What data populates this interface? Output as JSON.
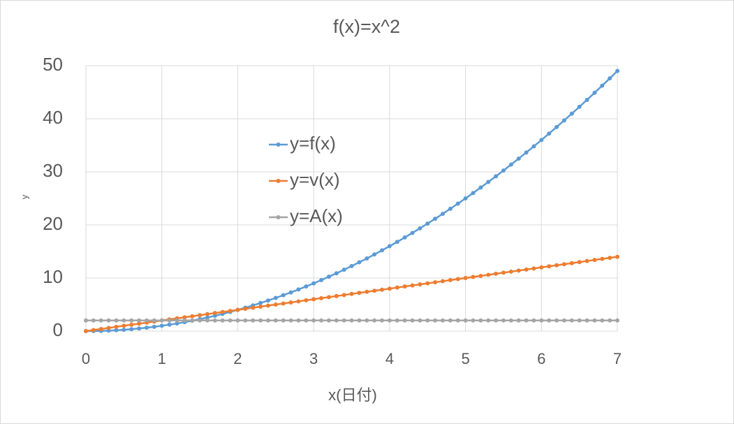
{
  "chart_data": {
    "type": "line",
    "title": "f(x)=x^2",
    "x_label": "x(日付)",
    "y_label": "y",
    "x": [
      0,
      0.1,
      0.2,
      0.3,
      0.4,
      0.5,
      0.6,
      0.7,
      0.8,
      0.9,
      1,
      1.1,
      1.2,
      1.3,
      1.4,
      1.5,
      1.6,
      1.7,
      1.8,
      1.9,
      2,
      2.1,
      2.2,
      2.3,
      2.4,
      2.5,
      2.6,
      2.7,
      2.8,
      2.9,
      3,
      3.1,
      3.2,
      3.3,
      3.4,
      3.5,
      3.6,
      3.7,
      3.8,
      3.9,
      4,
      4.1,
      4.2,
      4.3,
      4.4,
      4.5,
      4.6,
      4.7,
      4.8,
      4.9,
      5,
      5.1,
      5.2,
      5.3,
      5.4,
      5.5,
      5.6,
      5.7,
      5.8,
      5.9,
      6,
      6.1,
      6.2,
      6.3,
      6.4,
      6.5,
      6.6,
      6.7,
      6.8,
      6.9,
      7
    ],
    "series": [
      {
        "name": "y=f(x)",
        "color": "#5b9bd5",
        "values": [
          0,
          0.01,
          0.04,
          0.09,
          0.16,
          0.25,
          0.36,
          0.49,
          0.64,
          0.81,
          1,
          1.21,
          1.44,
          1.69,
          1.96,
          2.25,
          2.56,
          2.89,
          3.24,
          3.61,
          4,
          4.41,
          4.84,
          5.29,
          5.76,
          6.25,
          6.76,
          7.29,
          7.84,
          8.41,
          9,
          9.61,
          10.24,
          10.89,
          11.56,
          12.25,
          12.96,
          13.69,
          14.44,
          15.21,
          16,
          16.81,
          17.64,
          18.49,
          19.36,
          20.25,
          21.16,
          22.09,
          23.04,
          24.01,
          25,
          26.01,
          27.04,
          28.09,
          29.16,
          30.25,
          31.36,
          32.49,
          33.64,
          34.81,
          36,
          37.21,
          38.44,
          39.69,
          40.96,
          42.25,
          43.56,
          44.89,
          46.24,
          47.61,
          49
        ]
      },
      {
        "name": "y=v(x)",
        "color": "#ed7d31",
        "values": [
          0,
          0.2,
          0.4,
          0.6,
          0.8,
          1,
          1.2,
          1.4,
          1.6,
          1.8,
          2,
          2.2,
          2.4,
          2.6,
          2.8,
          3,
          3.2,
          3.4,
          3.6,
          3.8,
          4,
          4.2,
          4.4,
          4.6,
          4.8,
          5,
          5.2,
          5.4,
          5.6,
          5.8,
          6,
          6.2,
          6.4,
          6.6,
          6.8,
          7,
          7.2,
          7.4,
          7.6,
          7.8,
          8,
          8.2,
          8.4,
          8.6,
          8.8,
          9,
          9.2,
          9.4,
          9.6,
          9.8,
          10,
          10.2,
          10.4,
          10.6,
          10.8,
          11,
          11.2,
          11.4,
          11.6,
          11.8,
          12,
          12.2,
          12.4,
          12.6,
          12.8,
          13,
          13.2,
          13.4,
          13.6,
          13.8,
          14
        ]
      },
      {
        "name": "y=A(x)",
        "color": "#a5a5a5",
        "values": [
          2,
          2,
          2,
          2,
          2,
          2,
          2,
          2,
          2,
          2,
          2,
          2,
          2,
          2,
          2,
          2,
          2,
          2,
          2,
          2,
          2,
          2,
          2,
          2,
          2,
          2,
          2,
          2,
          2,
          2,
          2,
          2,
          2,
          2,
          2,
          2,
          2,
          2,
          2,
          2,
          2,
          2,
          2,
          2,
          2,
          2,
          2,
          2,
          2,
          2,
          2,
          2,
          2,
          2,
          2,
          2,
          2,
          2,
          2,
          2,
          2,
          2,
          2,
          2,
          2,
          2,
          2,
          2,
          2,
          2,
          2
        ]
      }
    ],
    "xlim": [
      0,
      7
    ],
    "xticks": [
      0,
      1,
      2,
      3,
      4,
      5,
      6,
      7
    ],
    "ylim": [
      0,
      50
    ],
    "yticks": [
      0,
      10,
      20,
      30,
      40,
      50
    ],
    "grid": true
  }
}
